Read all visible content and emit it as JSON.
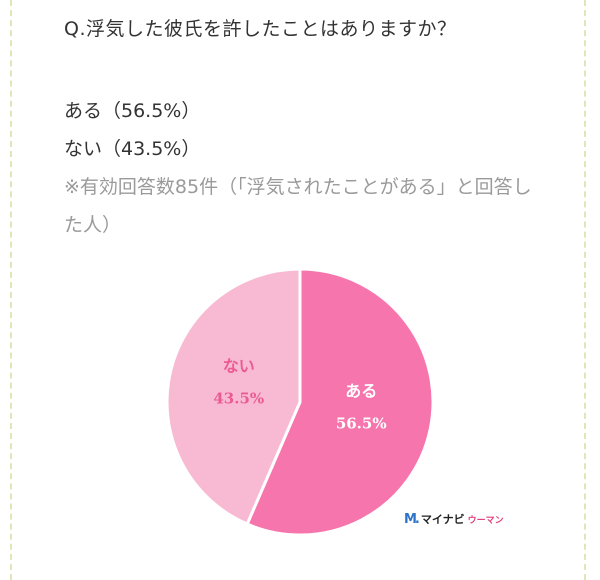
{
  "question": "Q.浮気した彼氏を許したことはありますか？",
  "answers": [
    "ある（56.5%）",
    "ない（43.5%）"
  ],
  "note": "※有効回答数85件（「浮気されたことがある」と回答した人）",
  "brand": {
    "mark": "M.",
    "name": "マイナビ",
    "sub": "ウーマン"
  },
  "colors": {
    "slice_aru": "#f775ad",
    "slice_nai": "#f8bad2",
    "label_aru": "#ffffff",
    "label_nai": "#ea5a93"
  },
  "chart_data": {
    "type": "pie",
    "title": "",
    "slices": [
      {
        "label": "ある",
        "value": 56.5,
        "display": "56.5%"
      },
      {
        "label": "ない",
        "value": 43.5,
        "display": "43.5%"
      }
    ]
  }
}
